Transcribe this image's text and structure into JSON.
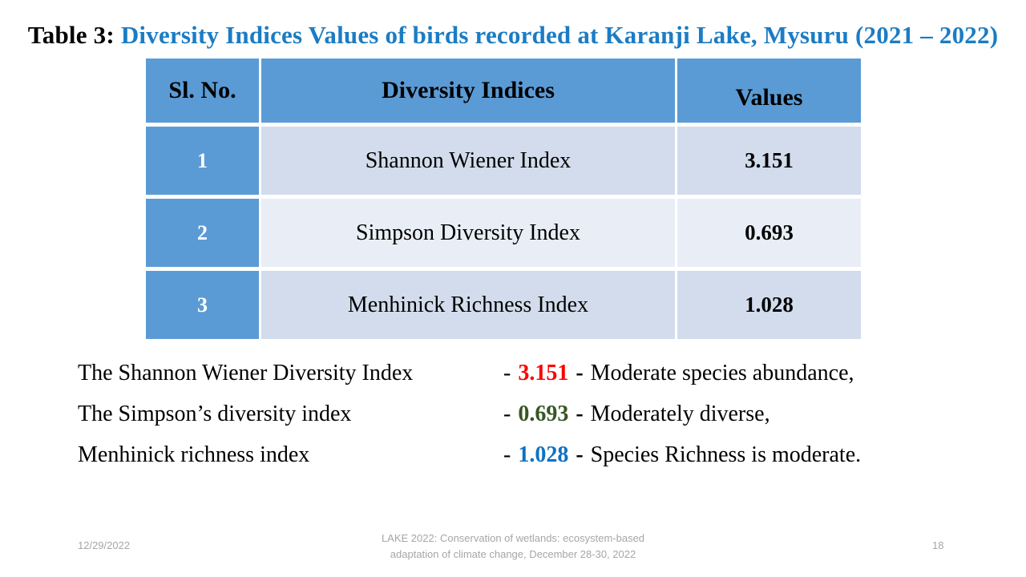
{
  "title": {
    "prefix": "Table 3: ",
    "main": "Diversity Indices Values of birds recorded at Karanji Lake, Mysuru (2021 – 2022)"
  },
  "table": {
    "headers": [
      "Sl. No.",
      "Diversity Indices",
      "Values"
    ],
    "rows": [
      {
        "sl_no": "1",
        "index_name": "Shannon Wiener Index",
        "value": "3.151"
      },
      {
        "sl_no": "2",
        "index_name": "Simpson Diversity Index",
        "value": "0.693"
      },
      {
        "sl_no": "3",
        "index_name": "Menhinick Richness Index",
        "value": "1.028"
      }
    ]
  },
  "notes": [
    {
      "label": "The Shannon Wiener Diversity Index",
      "dash_open": "-",
      "value": "3.151",
      "value_color": "#ff0000",
      "dash_close": "-",
      "description": "Moderate species abundance,"
    },
    {
      "label": "The Simpson’s diversity index",
      "dash_open": "-",
      "value": "0.693",
      "value_color": "#375623",
      "dash_close": "-",
      "description": "Moderately diverse,"
    },
    {
      "label": "Menhinick richness index",
      "dash_open": "-",
      "value": "1.028",
      "value_color": "#0f72c2",
      "dash_close": "-",
      "description": "Species Richness is moderate."
    }
  ],
  "footer": {
    "date": "12/29/2022",
    "conference_line1": "LAKE 2022: Conservation of wetlands: ecosystem-based",
    "conference_line2": "adaptation of climate change, December 28-30, 2022",
    "page_number": "18"
  },
  "colors": {
    "title_blue": "#1b7cc4",
    "header_blue": "#5b9bd5",
    "band_dark": "#d2dcec",
    "band_light": "#e9eef6",
    "footer_gray": "#a6a6a6"
  }
}
